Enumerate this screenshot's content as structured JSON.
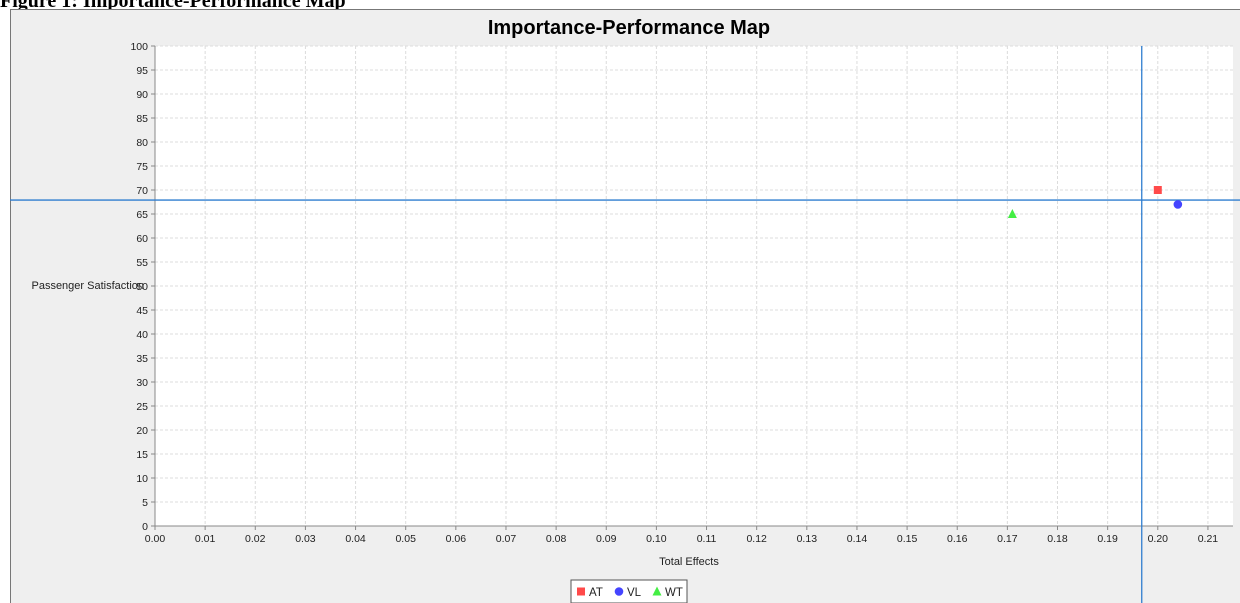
{
  "figure_heading": "Figure 1: Importance-Performance Map",
  "chart_data": {
    "type": "scatter",
    "title": "Importance-Performance Map",
    "xlabel": "Total Effects",
    "ylabel": "Passenger Satisfaction",
    "xlim": [
      0,
      0.215
    ],
    "ylim": [
      0,
      100
    ],
    "x_ticks": [
      "0.00",
      "0.01",
      "0.02",
      "0.03",
      "0.04",
      "0.05",
      "0.06",
      "0.07",
      "0.08",
      "0.09",
      "0.10",
      "0.11",
      "0.12",
      "0.13",
      "0.14",
      "0.15",
      "0.16",
      "0.17",
      "0.18",
      "0.19",
      "0.20",
      "0.21"
    ],
    "y_ticks": [
      "0",
      "5",
      "10",
      "15",
      "20",
      "25",
      "30",
      "35",
      "40",
      "45",
      "50",
      "55",
      "60",
      "65",
      "70",
      "75",
      "80",
      "85",
      "90",
      "95",
      "100"
    ],
    "grid": true,
    "reference_lines": {
      "x": 0.1968,
      "y": 67.9,
      "color": "#2f7dcf"
    },
    "series": [
      {
        "name": "AT",
        "marker": "square",
        "color": "#ff4a4a",
        "x": 0.2,
        "y": 70
      },
      {
        "name": "VL",
        "marker": "circle",
        "color": "#4444ff",
        "x": 0.204,
        "y": 67
      },
      {
        "name": "WT",
        "marker": "triangle",
        "color": "#44ee44",
        "x": 0.171,
        "y": 65
      }
    ],
    "legend_position": "bottom-center"
  }
}
